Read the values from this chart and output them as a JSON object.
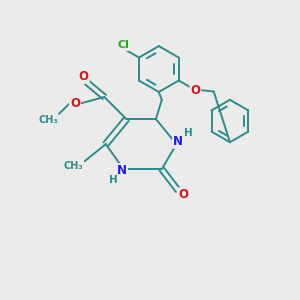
{
  "background_color": "#ebebeb",
  "bond_color": "#2e8b8b",
  "atom_colors": {
    "N": "#1a1aee",
    "O": "#dd1111",
    "Cl": "#22aa22",
    "H": "#2e8b8b"
  },
  "figsize": [
    3.0,
    3.0
  ],
  "dpi": 100
}
